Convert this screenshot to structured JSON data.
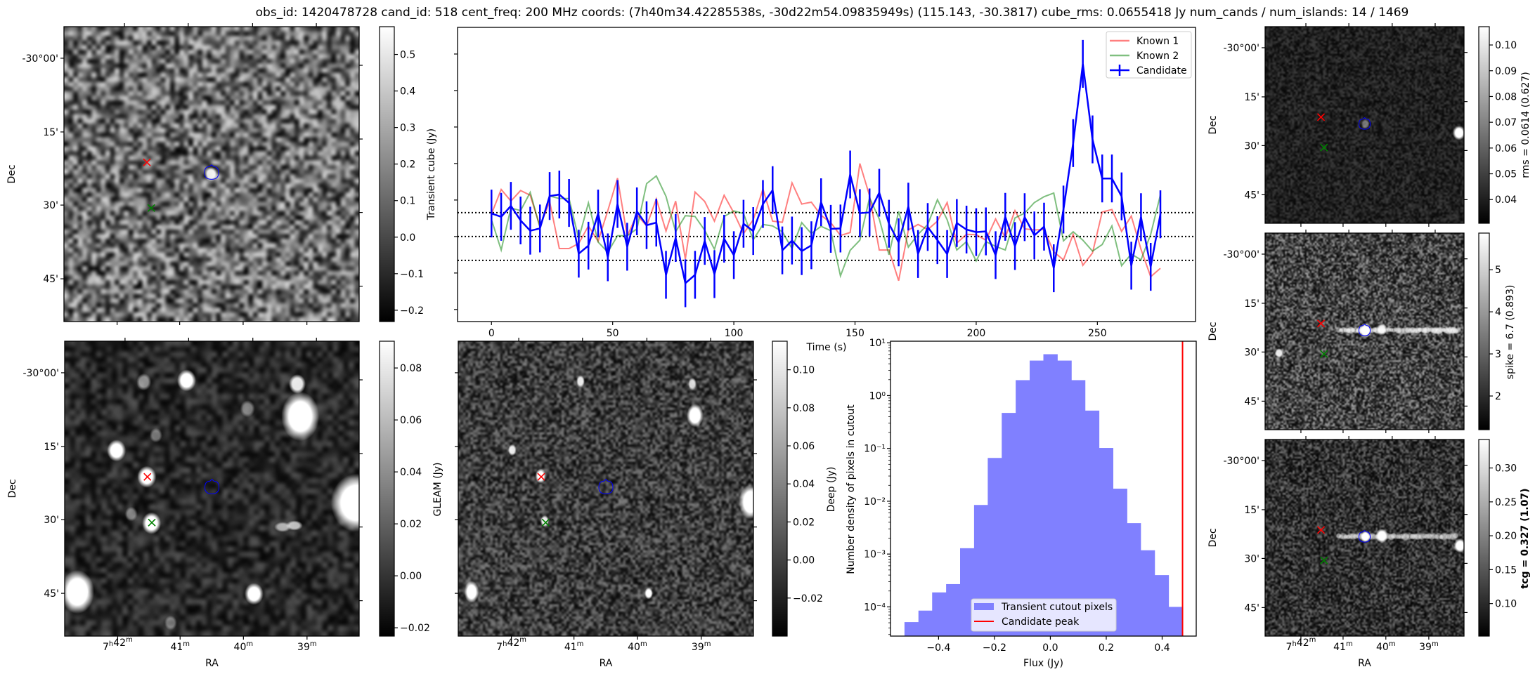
{
  "title": "obs_id: 1420478728 cand_id: 518 cent_freq: 200 MHz coords: (7h40m34.42285538s, -30d22m54.09835949s) (115.143, -30.3817) cube_rms: 0.0655418 Jy num_cands / num_islands: 14 / 1469",
  "axis_labels": {
    "dec": "Dec",
    "ra": "RA"
  },
  "dec_ticks": [
    "-30°00'",
    "15'",
    "30'",
    "45'"
  ],
  "ra_ticks": [
    "7h42m",
    "41m",
    "40m",
    "39m"
  ],
  "marker_colors": {
    "known1": "#ff0000",
    "known2": "#008000",
    "candidate_contour": "#0000ff"
  },
  "panels": {
    "transient": {
      "colorbar_label": "Transient cube (Jy)",
      "range": [
        -0.231,
        0.576
      ],
      "ticks": [
        {
          "v": 0.5,
          "label": "0.5"
        },
        {
          "v": 0.4,
          "label": "0.4"
        },
        {
          "v": 0.3,
          "label": "0.3"
        },
        {
          "v": 0.2,
          "label": "0.2"
        },
        {
          "v": 0.1,
          "label": "0.1"
        },
        {
          "v": 0.0,
          "label": "0.0"
        },
        {
          "v": -0.1,
          "label": "−0.1"
        },
        {
          "v": -0.2,
          "label": "−0.2"
        }
      ]
    },
    "gleam": {
      "colorbar_label": "GLEAM (Jy)",
      "range": [
        -0.0232,
        0.0903
      ],
      "ticks": [
        {
          "v": 0.08,
          "label": "0.08"
        },
        {
          "v": 0.06,
          "label": "0.06"
        },
        {
          "v": 0.04,
          "label": "0.04"
        },
        {
          "v": 0.02,
          "label": "0.02"
        },
        {
          "v": 0.0,
          "label": "0.00"
        },
        {
          "v": -0.02,
          "label": "−0.02"
        }
      ]
    },
    "deep": {
      "colorbar_label": "Deep (Jy)",
      "range": [
        -0.04,
        0.115
      ],
      "ticks": [
        {
          "v": 0.1,
          "label": "0.10"
        },
        {
          "v": 0.08,
          "label": "0.08"
        },
        {
          "v": 0.06,
          "label": "0.06"
        },
        {
          "v": 0.04,
          "label": "0.04"
        },
        {
          "v": 0.02,
          "label": "0.02"
        },
        {
          "v": 0.0,
          "label": "0.00"
        },
        {
          "v": -0.02,
          "label": "−0.02"
        }
      ]
    },
    "rms": {
      "colorbar_label": "rms = 0.0614 (0.627)",
      "range": [
        0.0308,
        0.1071
      ],
      "ticks": [
        {
          "v": 0.1,
          "label": "0.10"
        },
        {
          "v": 0.09,
          "label": "0.09"
        },
        {
          "v": 0.08,
          "label": "0.08"
        },
        {
          "v": 0.07,
          "label": "0.07"
        },
        {
          "v": 0.06,
          "label": "0.06"
        },
        {
          "v": 0.05,
          "label": "0.05"
        },
        {
          "v": 0.04,
          "label": "0.04"
        }
      ]
    },
    "spike": {
      "colorbar_label": "spike = 6.7 (0.893)",
      "range": [
        1.2,
        5.87
      ],
      "ticks": [
        {
          "v": 5,
          "label": "5"
        },
        {
          "v": 4,
          "label": "4"
        },
        {
          "v": 3,
          "label": "3"
        },
        {
          "v": 2,
          "label": "2"
        }
      ]
    },
    "tcg": {
      "colorbar_label": "tcg = 0.327 (1.07)",
      "range": [
        0.052,
        0.342
      ],
      "ticks": [
        {
          "v": 0.3,
          "label": "0.30"
        },
        {
          "v": 0.25,
          "label": "0.25"
        },
        {
          "v": 0.2,
          "label": "0.20"
        },
        {
          "v": 0.15,
          "label": "0.15"
        },
        {
          "v": 0.1,
          "label": "0.10"
        }
      ]
    }
  },
  "chart_data": [
    {
      "type": "line",
      "name": "light-curve",
      "xlabel": "Time (s)",
      "ylabel": "",
      "xlim": [
        -14,
        290.5
      ],
      "ylim": [
        -0.233,
        0.573
      ],
      "xticks": [
        {
          "v": 0,
          "label": "0"
        },
        {
          "v": 50,
          "label": "50"
        },
        {
          "v": 100,
          "label": "100"
        },
        {
          "v": 150,
          "label": "150"
        },
        {
          "v": 200,
          "label": "200"
        },
        {
          "v": 250,
          "label": "250"
        }
      ],
      "yticks": [
        -0.2,
        -0.1,
        0.0,
        0.1,
        0.2,
        0.3,
        0.4,
        0.5
      ],
      "hlines": [
        -0.0655,
        0.0,
        0.0655
      ],
      "legend_position": "top-right",
      "x": [
        0,
        4,
        8,
        12,
        16,
        20,
        24,
        28,
        32,
        36,
        40,
        44,
        48,
        52,
        56,
        60,
        64,
        68,
        72,
        76,
        80,
        84,
        88,
        92,
        96,
        100,
        104,
        108,
        112,
        116,
        120,
        124,
        128,
        132,
        136,
        140,
        144,
        148,
        152,
        156,
        160,
        164,
        168,
        172,
        176,
        180,
        184,
        188,
        192,
        196,
        200,
        204,
        208,
        212,
        216,
        220,
        224,
        228,
        232,
        236,
        240,
        244,
        248,
        252,
        256,
        260,
        264,
        268,
        272,
        276
      ],
      "series": [
        {
          "name": "Known 1",
          "color": "#ff0000",
          "alpha": 0.5,
          "values": [
            0.062,
            0.129,
            0.097,
            0.126,
            0.113,
            0.028,
            0.096,
            -0.033,
            -0.033,
            -0.019,
            0.029,
            -0.013,
            0.071,
            0.16,
            0.001,
            0.06,
            0.029,
            0.103,
            0.015,
            0.097,
            -0.062,
            0.122,
            0.096,
            0.042,
            0.113,
            0.065,
            0.008,
            0.046,
            0.13,
            0.042,
            0.039,
            0.147,
            0.089,
            0.094,
            0.058,
            0.038,
            0.003,
            0.011,
            0.2,
            0.112,
            -0.037,
            -0.037,
            -0.121,
            0.018,
            0.033,
            0.019,
            0.042,
            0.093,
            -0.018,
            0.006,
            0.005,
            -0.01,
            0.048,
            -0.003,
            0.071,
            0.021,
            0.018,
            0.019,
            -0.042,
            -0.064,
            0.006,
            -0.079,
            -0.045,
            0.067,
            0.074,
            0.014,
            0.056,
            -0.035,
            -0.11,
            -0.087
          ]
        },
        {
          "name": "Known 2",
          "color": "#008000",
          "alpha": 0.5,
          "values": [
            0.046,
            -0.037,
            0.078,
            0.071,
            0.121,
            0.025,
            0.111,
            0.104,
            0.104,
            -0.006,
            0.092,
            -0.015,
            -0.043,
            0.002,
            0.002,
            0.021,
            0.145,
            0.166,
            0.11,
            0.013,
            0.057,
            0.055,
            0.017,
            -0.035,
            0.055,
            0.07,
            0.063,
            -0.009,
            0.033,
            0.029,
            0.013,
            -0.033,
            0.038,
            0.008,
            0.028,
            0.016,
            -0.108,
            -0.038,
            -0.01,
            0.106,
            0.048,
            -0.05,
            0.069,
            -0.029,
            0.006,
            0.033,
            0.101,
            0.046,
            -0.037,
            -0.014,
            -0.067,
            -0.014,
            -0.027,
            -0.037,
            0.051,
            0.064,
            0.093,
            0.109,
            0.119,
            -0.012,
            0.013,
            -0.01,
            -0.04,
            -0.022,
            0.029,
            -0.08,
            -0.048,
            -0.064,
            0.006,
            0.114
          ]
        },
        {
          "name": "Candidate",
          "color": "#0000ff",
          "alpha": 1.0,
          "yerr": 0.0655,
          "values": [
            0.063,
            0.054,
            0.084,
            0.044,
            0.016,
            0.022,
            0.111,
            0.115,
            0.092,
            -0.047,
            -0.025,
            0.063,
            -0.057,
            0.089,
            -0.028,
            0.069,
            0.031,
            0.038,
            -0.105,
            -0.004,
            -0.128,
            -0.105,
            -0.012,
            -0.103,
            -0.006,
            -0.051,
            0.035,
            0.015,
            0.089,
            0.127,
            -0.038,
            -0.011,
            -0.04,
            -0.024,
            0.094,
            0.021,
            0.022,
            0.17,
            0.064,
            0.066,
            0.12,
            0.035,
            -0.016,
            0.082,
            -0.048,
            0.026,
            -0.01,
            -0.048,
            0.037,
            0.019,
            0.012,
            0.014,
            -0.051,
            0.054,
            -0.026,
            0.053,
            0.003,
            0.027,
            -0.087,
            0.074,
            0.256,
            0.473,
            0.266,
            0.159,
            0.159,
            0.11,
            -0.08,
            0.053,
            -0.083,
            0.061
          ]
        }
      ]
    },
    {
      "type": "bar",
      "name": "flux-histogram",
      "xlabel": "Flux (Jy)",
      "ylabel": "Number density of pixels in cutout",
      "yscale": "log",
      "xlim": [
        -0.572,
        0.522
      ],
      "ylim": [
        2.8e-05,
        10.7
      ],
      "xticks": [
        {
          "v": -0.4,
          "label": "−0.4"
        },
        {
          "v": -0.2,
          "label": "−0.2"
        },
        {
          "v": 0.0,
          "label": "0.0"
        },
        {
          "v": 0.2,
          "label": "0.2"
        },
        {
          "v": 0.4,
          "label": "0.4"
        }
      ],
      "yticks": [
        {
          "exp": 1,
          "label": "10¹"
        },
        {
          "exp": 0,
          "label": "10⁰"
        },
        {
          "exp": -1,
          "label": "10⁻¹"
        },
        {
          "exp": -2,
          "label": "10⁻²"
        },
        {
          "exp": -3,
          "label": "10⁻³"
        },
        {
          "exp": -4,
          "label": "10⁻⁴"
        }
      ],
      "bin_edges": [
        -0.522,
        -0.472,
        -0.423,
        -0.373,
        -0.323,
        -0.273,
        -0.224,
        -0.174,
        -0.124,
        -0.074,
        -0.025,
        0.025,
        0.075,
        0.124,
        0.174,
        0.224,
        0.274,
        0.323,
        0.373,
        0.423,
        0.473
      ],
      "values": [
        5.15e-05,
        8.5e-05,
        0.000188,
        0.00027,
        0.00129,
        0.0085,
        0.066,
        0.47,
        1.96,
        4.6,
        6.07,
        4.6,
        1.96,
        0.52,
        0.102,
        0.0173,
        0.00385,
        0.00118,
        0.0004,
        0.0001
      ],
      "bar_color": "#8080ff",
      "candidate_peak": 0.473,
      "candidate_color": "#ff0000",
      "legend": [
        "Transient cutout pixels",
        "Candidate peak"
      ],
      "legend_position": "lower-center"
    }
  ]
}
